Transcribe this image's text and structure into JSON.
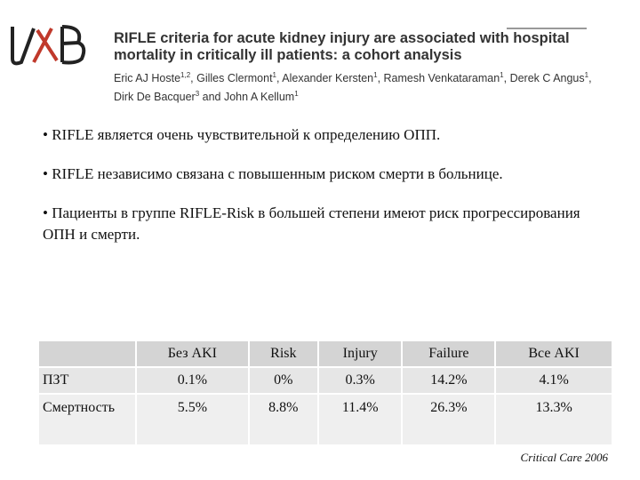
{
  "header": {
    "title_lines": [
      "RIFLE criteria for acute kidney injury are associated with hospital",
      "mortality in critically ill patients: a cohort analysis"
    ],
    "authors": [
      {
        "name": "Eric AJ Hoste",
        "sup": "1,2"
      },
      {
        "name": "Gilles Clermont",
        "sup": "1"
      },
      {
        "name": "Alexander Kersten",
        "sup": "1"
      },
      {
        "name": "Ramesh Venkataraman",
        "sup": "1"
      },
      {
        "name": "Derek C Angus",
        "sup": "1"
      },
      {
        "name": "Dirk De Bacquer",
        "sup": "3"
      },
      {
        "name": "John A Kellum",
        "sup": "1"
      }
    ],
    "separator": ", ",
    "final_separator": " and "
  },
  "bullet": "•",
  "bullets": [
    "RIFLE является очень чувствительной к определению ОПП.",
    "RIFLE независимо связана с повышенным риском смерти в больнице.",
    "Пациенты в группе RIFLE-Risk в большей степени имеют риск прогрессирования ОПН и смерти."
  ],
  "table": {
    "columns": [
      "Без AKI",
      "Risk",
      "Injury",
      "Failure",
      "Все AKI"
    ],
    "rows": [
      {
        "label": "ПЗТ",
        "cells": [
          "0.1%",
          "0%",
          "0.3%",
          "14.2%",
          "4.1%"
        ]
      },
      {
        "label": "Смертность",
        "cells": [
          "5.5%",
          "8.8%",
          "11.4%",
          "26.3%",
          "13.3%"
        ]
      }
    ]
  },
  "citation": "Critical Care 2006"
}
